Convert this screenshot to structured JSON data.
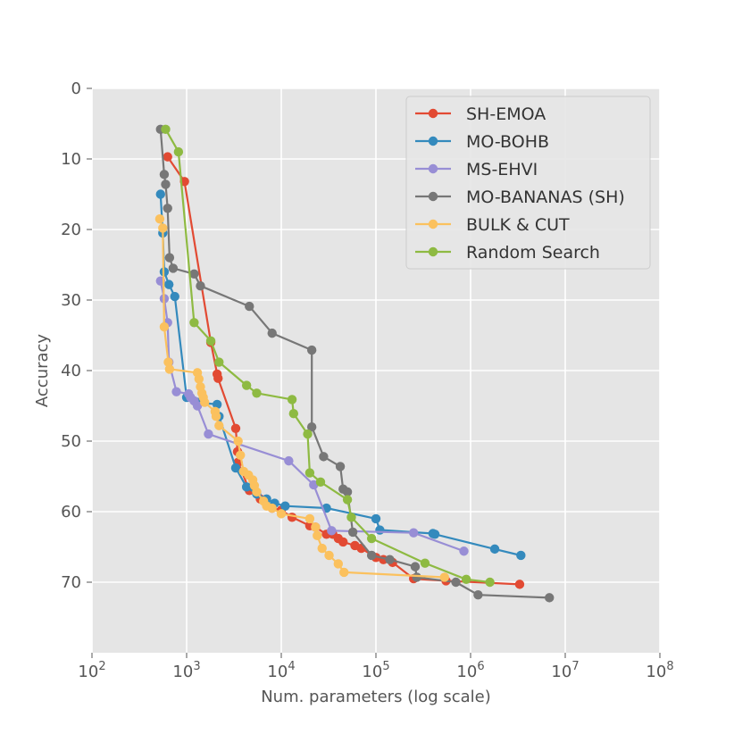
{
  "chart_data": {
    "type": "line",
    "xscale": "log",
    "xlabel": "Num. parameters (log scale)",
    "ylabel": "Accuracy",
    "xlim": [
      100,
      100000000
    ],
    "ylim": [
      80,
      0
    ],
    "y_inverted": true,
    "x_ticks": [
      {
        "value": 100,
        "base": "10",
        "exp": "2"
      },
      {
        "value": 1000,
        "base": "10",
        "exp": "3"
      },
      {
        "value": 10000,
        "base": "10",
        "exp": "4"
      },
      {
        "value": 100000,
        "base": "10",
        "exp": "5"
      },
      {
        "value": 1000000,
        "base": "10",
        "exp": "6"
      },
      {
        "value": 10000000,
        "base": "10",
        "exp": "7"
      },
      {
        "value": 100000000,
        "base": "10",
        "exp": "8"
      }
    ],
    "y_ticks": [
      0,
      10,
      20,
      30,
      40,
      50,
      60,
      70
    ],
    "grid": true,
    "legend_position": "top-right",
    "series": [
      {
        "name": "SH-EMOA",
        "color": "#E24A33",
        "points": [
          [
            630,
            9.7
          ],
          [
            950,
            13.2
          ],
          [
            1800,
            36
          ],
          [
            2100,
            40.5
          ],
          [
            2150,
            41.1
          ],
          [
            3300,
            48.2
          ],
          [
            3450,
            51.5
          ],
          [
            3500,
            53
          ],
          [
            4600,
            57
          ],
          [
            6000,
            58.2
          ],
          [
            8000,
            59.5
          ],
          [
            10000,
            59.8
          ],
          [
            13000,
            60.8
          ],
          [
            20000,
            62
          ],
          [
            23000,
            62.2
          ],
          [
            30000,
            63.2
          ],
          [
            35000,
            63.2
          ],
          [
            40000,
            63.8
          ],
          [
            45000,
            64.3
          ],
          [
            60000,
            64.8
          ],
          [
            70000,
            65.2
          ],
          [
            100000,
            66.5
          ],
          [
            120000,
            66.8
          ],
          [
            150000,
            67.2
          ],
          [
            250000,
            69.5
          ],
          [
            550000,
            69.8
          ],
          [
            3300000,
            70.3
          ]
        ]
      },
      {
        "name": "MO-BOHB",
        "color": "#348ABD",
        "points": [
          [
            530,
            15
          ],
          [
            560,
            20.5
          ],
          [
            580,
            26
          ],
          [
            650,
            27.8
          ],
          [
            750,
            29.5
          ],
          [
            1000,
            43.8
          ],
          [
            1300,
            44.5
          ],
          [
            2100,
            44.8
          ],
          [
            2200,
            46.5
          ],
          [
            3300,
            53.8
          ],
          [
            4300,
            56.5
          ],
          [
            5500,
            57.5
          ],
          [
            7000,
            58.2
          ],
          [
            8500,
            58.8
          ],
          [
            11000,
            59.2
          ],
          [
            30000,
            59.5
          ],
          [
            100000,
            61
          ],
          [
            110000,
            62.6
          ],
          [
            400000,
            63.1
          ],
          [
            420000,
            63.2
          ],
          [
            1800000,
            65.3
          ],
          [
            3400000,
            66.2
          ]
        ]
      },
      {
        "name": "MS-EHVI",
        "color": "#988ED5",
        "points": [
          [
            530,
            27.3
          ],
          [
            580,
            29.8
          ],
          [
            630,
            33.2
          ],
          [
            650,
            38.8
          ],
          [
            780,
            43
          ],
          [
            1050,
            43.3
          ],
          [
            1100,
            43.8
          ],
          [
            1200,
            44.3
          ],
          [
            1300,
            45
          ],
          [
            1700,
            49
          ],
          [
            12000,
            52.8
          ],
          [
            22000,
            56.2
          ],
          [
            34000,
            62.7
          ],
          [
            250000,
            63
          ],
          [
            850000,
            65.6
          ]
        ]
      },
      {
        "name": "MO-BANANAS (SH)",
        "color": "#777777",
        "points": [
          [
            530,
            5.8
          ],
          [
            580,
            12.2
          ],
          [
            600,
            13.6
          ],
          [
            630,
            17
          ],
          [
            660,
            24
          ],
          [
            720,
            25.5
          ],
          [
            1200,
            26.3
          ],
          [
            1400,
            28
          ],
          [
            4600,
            30.9
          ],
          [
            8000,
            34.7
          ],
          [
            21000,
            37.1
          ],
          [
            21000,
            48
          ],
          [
            28000,
            52.2
          ],
          [
            42000,
            53.6
          ],
          [
            45000,
            56.8
          ],
          [
            50000,
            57.2
          ],
          [
            57000,
            62.9
          ],
          [
            90000,
            66.2
          ],
          [
            140000,
            66.8
          ],
          [
            260000,
            67.8
          ],
          [
            270000,
            69.3
          ],
          [
            700000,
            70
          ],
          [
            1200000,
            71.8
          ],
          [
            6800000,
            72.2
          ]
        ]
      },
      {
        "name": "BULK & CUT",
        "color": "#FBC15E",
        "points": [
          [
            520,
            18.5
          ],
          [
            560,
            19.8
          ],
          [
            580,
            33.8
          ],
          [
            640,
            38.8
          ],
          [
            660,
            39.8
          ],
          [
            1300,
            40.3
          ],
          [
            1350,
            41.2
          ],
          [
            1400,
            42.3
          ],
          [
            1450,
            43.2
          ],
          [
            1500,
            43.8
          ],
          [
            1550,
            44.5
          ],
          [
            2000,
            45.8
          ],
          [
            2050,
            46.5
          ],
          [
            2200,
            47.8
          ],
          [
            3500,
            50
          ],
          [
            3700,
            52
          ],
          [
            4000,
            54.3
          ],
          [
            4500,
            54.8
          ],
          [
            5000,
            55.5
          ],
          [
            5200,
            56.3
          ],
          [
            5500,
            57.2
          ],
          [
            6500,
            58.5
          ],
          [
            7000,
            59.2
          ],
          [
            8000,
            59.5
          ],
          [
            10000,
            60.3
          ],
          [
            20000,
            61
          ],
          [
            23000,
            62.2
          ],
          [
            24000,
            63.4
          ],
          [
            27000,
            65.2
          ],
          [
            32000,
            66.2
          ],
          [
            40000,
            67.4
          ],
          [
            46000,
            68.6
          ],
          [
            530000,
            69.3
          ]
        ]
      },
      {
        "name": "Random Search",
        "color": "#8EBA42",
        "points": [
          [
            600,
            5.8
          ],
          [
            820,
            9
          ],
          [
            1200,
            33.2
          ],
          [
            1800,
            35.8
          ],
          [
            2200,
            38.8
          ],
          [
            4300,
            42.1
          ],
          [
            5500,
            43.2
          ],
          [
            13000,
            44.1
          ],
          [
            13500,
            46.1
          ],
          [
            19000,
            49
          ],
          [
            20000,
            54.5
          ],
          [
            26000,
            55.8
          ],
          [
            50000,
            58.3
          ],
          [
            55000,
            60.8
          ],
          [
            90000,
            63.8
          ],
          [
            330000,
            67.3
          ],
          [
            900000,
            69.6
          ],
          [
            1600000,
            70
          ]
        ]
      }
    ]
  }
}
